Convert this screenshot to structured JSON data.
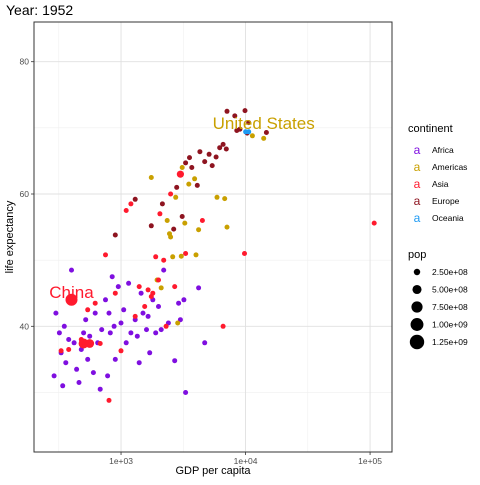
{
  "chart_data": {
    "type": "scatter",
    "title": "Year: 1952",
    "xlabel": "GDP per capita",
    "ylabel": "life expectancy",
    "x_scale": "log10",
    "xlim": [
      200,
      150000
    ],
    "ylim": [
      21,
      86
    ],
    "x_ticks": [
      1000,
      10000,
      100000
    ],
    "x_tick_labels": [
      "1e+03",
      "1e+04",
      "1e+05"
    ],
    "y_ticks": [
      40,
      60,
      80
    ],
    "y_tick_labels": [
      "40",
      "60",
      "80"
    ],
    "grid": true,
    "legend_position": "right",
    "color_legend": {
      "title": "continent",
      "entries": [
        {
          "label": "Africa",
          "color": "#7F0FE0"
        },
        {
          "label": "Americas",
          "color": "#C9A000"
        },
        {
          "label": "Asia",
          "color": "#FF1A2E"
        },
        {
          "label": "Europe",
          "color": "#8E1420"
        },
        {
          "label": "Oceania",
          "color": "#1E9AF3"
        }
      ]
    },
    "size_legend": {
      "title": "pop",
      "entries": [
        {
          "label": "2.50e+08",
          "value": 250000000
        },
        {
          "label": "5.00e+08",
          "value": 500000000
        },
        {
          "label": "7.50e+08",
          "value": 750000000
        },
        {
          "label": "1.00e+09",
          "value": 1000000000
        },
        {
          "label": "1.25e+09",
          "value": 1250000000
        }
      ]
    },
    "annotations": [
      {
        "text": "China",
        "x": 400,
        "y": 44,
        "color": "#FF1A2E"
      },
      {
        "text": "United States",
        "x": 14000,
        "y": 69.5,
        "color": "#C9A000"
      }
    ],
    "series": [
      {
        "continent": "Africa",
        "points": [
          [
            290,
            32.5
          ],
          [
            300,
            42
          ],
          [
            320,
            39
          ],
          [
            330,
            36
          ],
          [
            340,
            31
          ],
          [
            350,
            40
          ],
          [
            360,
            34.5
          ],
          [
            380,
            38
          ],
          [
            400,
            48.5
          ],
          [
            420,
            37.5
          ],
          [
            440,
            33.5
          ],
          [
            460,
            31.5
          ],
          [
            480,
            36.5
          ],
          [
            500,
            39
          ],
          [
            520,
            41
          ],
          [
            540,
            35
          ],
          [
            560,
            38.5
          ],
          [
            600,
            33
          ],
          [
            620,
            42
          ],
          [
            650,
            37.5
          ],
          [
            680,
            30.5
          ],
          [
            700,
            39.5
          ],
          [
            750,
            44
          ],
          [
            780,
            32.5
          ],
          [
            800,
            42
          ],
          [
            820,
            39
          ],
          [
            850,
            47.5
          ],
          [
            880,
            40
          ],
          [
            900,
            35
          ],
          [
            950,
            46
          ],
          [
            1000,
            40.5
          ],
          [
            1050,
            42.5
          ],
          [
            1100,
            37.5
          ],
          [
            1150,
            46.5
          ],
          [
            1200,
            39
          ],
          [
            1300,
            41
          ],
          [
            1350,
            38.5
          ],
          [
            1400,
            34.5
          ],
          [
            1450,
            45
          ],
          [
            1500,
            42
          ],
          [
            1600,
            39.5
          ],
          [
            1650,
            41.5
          ],
          [
            1700,
            36
          ],
          [
            1800,
            44
          ],
          [
            1900,
            39
          ],
          [
            2000,
            43
          ],
          [
            2100,
            39.5
          ],
          [
            2200,
            48.5
          ],
          [
            2400,
            40.5
          ],
          [
            2700,
            34.8
          ],
          [
            2900,
            43.5
          ],
          [
            3000,
            41
          ],
          [
            3200,
            44
          ],
          [
            3300,
            30
          ],
          [
            4200,
            45.8
          ],
          [
            4700,
            37.5
          ]
        ]
      },
      {
        "continent": "Americas",
        "points": [
          [
            1750,
            62.5
          ],
          [
            1950,
            47
          ],
          [
            2100,
            45.8
          ],
          [
            2350,
            56
          ],
          [
            2450,
            54
          ],
          [
            2500,
            53.5
          ],
          [
            2600,
            50.5
          ],
          [
            2750,
            59.5
          ],
          [
            2850,
            40.5
          ],
          [
            3050,
            50.6
          ],
          [
            3100,
            64
          ],
          [
            3250,
            55.6
          ],
          [
            3500,
            61.5
          ],
          [
            3900,
            62.3
          ],
          [
            4000,
            50.8
          ],
          [
            4200,
            54.6
          ],
          [
            5900,
            59.5
          ],
          [
            6800,
            59.3
          ],
          [
            7100,
            55
          ],
          [
            11350,
            68.8
          ],
          [
            14000,
            68.4
          ]
        ]
      },
      {
        "continent": "Asia",
        "points": [
          [
            330,
            36.3
          ],
          [
            380,
            36.5
          ],
          [
            400,
            44
          ],
          [
            480,
            38
          ],
          [
            540,
            42.5
          ],
          [
            560,
            37.5
          ],
          [
            620,
            43.5
          ],
          [
            680,
            37.4
          ],
          [
            750,
            50.8
          ],
          [
            800,
            28.8
          ],
          [
            900,
            45
          ],
          [
            1000,
            36.3
          ],
          [
            1100,
            57.5
          ],
          [
            1200,
            58.5
          ],
          [
            1300,
            41.5
          ],
          [
            1400,
            46
          ],
          [
            1550,
            43
          ],
          [
            1650,
            45.5
          ],
          [
            1750,
            44.5
          ],
          [
            1800,
            45
          ],
          [
            1900,
            50.5
          ],
          [
            2000,
            47
          ],
          [
            2050,
            57
          ],
          [
            2200,
            50
          ],
          [
            2300,
            40
          ],
          [
            2500,
            60
          ],
          [
            2700,
            46
          ],
          [
            3000,
            63
          ],
          [
            3300,
            51
          ],
          [
            4500,
            56
          ],
          [
            6600,
            40
          ],
          [
            9800,
            51
          ],
          [
            108000,
            55.6
          ]
        ]
      },
      {
        "continent": "Europe",
        "points": [
          [
            900,
            53.8
          ],
          [
            1300,
            59.2
          ],
          [
            1750,
            55.2
          ],
          [
            2150,
            58.5
          ],
          [
            2650,
            54.7
          ],
          [
            2800,
            61
          ],
          [
            3100,
            56.6
          ],
          [
            3300,
            64.7
          ],
          [
            3550,
            65.5
          ],
          [
            3700,
            64
          ],
          [
            4100,
            61.3
          ],
          [
            4300,
            66.4
          ],
          [
            4700,
            64.9
          ],
          [
            5100,
            66
          ],
          [
            5400,
            64.3
          ],
          [
            5800,
            65.6
          ],
          [
            6200,
            67
          ],
          [
            6600,
            67.5
          ],
          [
            7000,
            66.8
          ],
          [
            7100,
            72.5
          ],
          [
            8200,
            71.8
          ],
          [
            8500,
            69.6
          ],
          [
            9000,
            69.8
          ],
          [
            9900,
            72.6
          ],
          [
            10300,
            69.2
          ],
          [
            10600,
            70.8
          ],
          [
            14700,
            69.3
          ]
        ]
      },
      {
        "continent": "Oceania",
        "points": [
          [
            10000,
            69.4
          ],
          [
            10600,
            69.4
          ]
        ]
      }
    ],
    "large_points": [
      {
        "continent": "Asia",
        "x": 400,
        "y": 44
      },
      {
        "continent": "Asia",
        "x": 500,
        "y": 37.4
      },
      {
        "continent": "Asia",
        "x": 3000,
        "y": 63
      },
      {
        "continent": "Asia",
        "x": 560,
        "y": 37.4
      }
    ]
  }
}
